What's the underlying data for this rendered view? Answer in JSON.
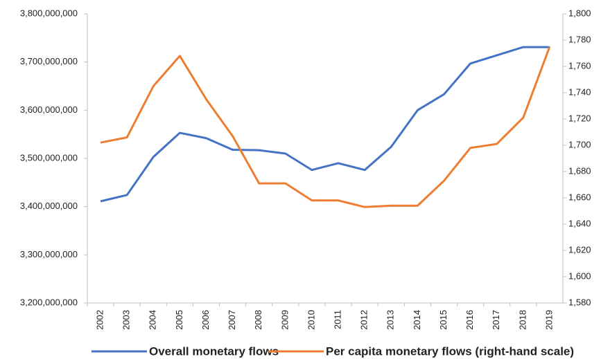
{
  "chart_data": {
    "type": "line",
    "categories": [
      "2002",
      "2003",
      "2004",
      "2005",
      "2006",
      "2007",
      "2008",
      "2009",
      "2010",
      "2011",
      "2012",
      "2013",
      "2014",
      "2015",
      "2016",
      "2017",
      "2018",
      "2019"
    ],
    "series": [
      {
        "name": "Overall monetary flows",
        "color": "#4472c4",
        "axis": "y",
        "values": [
          3411000000,
          3424000000,
          3503000000,
          3553000000,
          3542000000,
          3518000000,
          3517000000,
          3510000000,
          3476000000,
          3490000000,
          3476000000,
          3524000000,
          3600000000,
          3633000000,
          3697000000,
          3714000000,
          3731000000,
          3731000000
        ]
      },
      {
        "name": "Per capita monetary flows (right-hand scale)",
        "color": "#ed7d31",
        "axis": "y2",
        "values": [
          1702,
          1706,
          1745,
          1768,
          1735,
          1707,
          1671,
          1671,
          1658,
          1658,
          1653,
          1654,
          1654,
          1673,
          1698,
          1701,
          1721,
          1775
        ]
      }
    ],
    "ylim": [
      3200000000,
      3800000000
    ],
    "yticks": [
      {
        "value": 3200000000,
        "label": "3,200,000,000"
      },
      {
        "value": 3300000000,
        "label": "3,300,000,000"
      },
      {
        "value": 3400000000,
        "label": "3,400,000,000"
      },
      {
        "value": 3500000000,
        "label": "3,500,000,000"
      },
      {
        "value": 3600000000,
        "label": "3,600,000,000"
      },
      {
        "value": 3700000000,
        "label": "3,700,000,000"
      },
      {
        "value": 3800000000,
        "label": "3,800,000,000"
      }
    ],
    "y2lim": [
      1580,
      1800
    ],
    "y2ticks": [
      {
        "value": 1580,
        "label": "1,580"
      },
      {
        "value": 1600,
        "label": "1,600"
      },
      {
        "value": 1620,
        "label": "1,620"
      },
      {
        "value": 1640,
        "label": "1,640"
      },
      {
        "value": 1660,
        "label": "1,660"
      },
      {
        "value": 1680,
        "label": "1,680"
      },
      {
        "value": 1700,
        "label": "1,700"
      },
      {
        "value": 1720,
        "label": "1,720"
      },
      {
        "value": 1740,
        "label": "1,740"
      },
      {
        "value": 1760,
        "label": "1,760"
      },
      {
        "value": 1780,
        "label": "1,780"
      },
      {
        "value": 1800,
        "label": "1,800"
      }
    ],
    "legend": "bottom"
  }
}
